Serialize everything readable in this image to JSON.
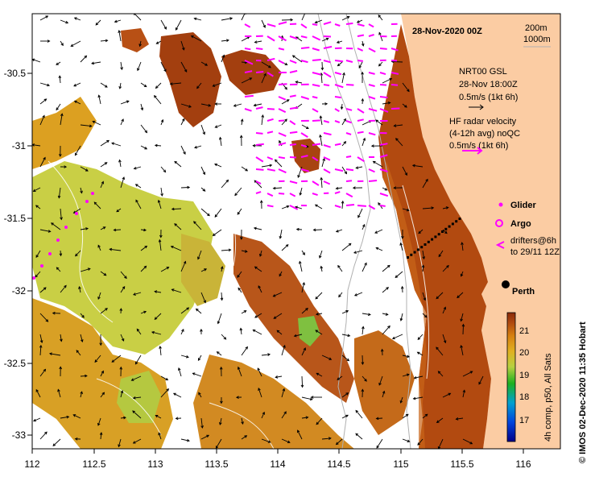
{
  "map": {
    "title": "28-Nov-2020 00Z",
    "depth_contours": [
      "200m",
      "1000m"
    ],
    "x_ticks": [
      "112",
      "112.5",
      "113",
      "113.5",
      "114",
      "114.5",
      "115",
      "115.5",
      "116"
    ],
    "y_ticks": [
      "-30.5",
      "-31",
      "-31.5",
      "-32",
      "-32.5",
      "-33"
    ],
    "lon_range": [
      112,
      116.3
    ],
    "lat_range": [
      -33.15,
      -30.05
    ],
    "city_label": "Perth",
    "credit": "© IMOS 02-Dec-2020 11:35 Hobart"
  },
  "legend": {
    "nrt": {
      "l1": "NRT00 GSL",
      "l2": "28-Nov 18:00Z",
      "l3": "0.5m/s (1kt 6h)"
    },
    "hf": {
      "l1": "HF radar velocity",
      "l2": "(4-12h avg) noQC",
      "l3": "0.5m/s (1kt 6h)"
    },
    "glider": "Glider",
    "argo": "Argo",
    "drifters": {
      "l1": "drifters@6h",
      "l2": "to 29/11 12Z"
    }
  },
  "colorbar": {
    "ticks": [
      "21",
      "20",
      "19",
      "18",
      "17"
    ],
    "label": "4h comp, p50, All Sats"
  },
  "colors": {
    "land": "#fbcca3",
    "sst_warm": "#b24a10",
    "sst_mid": "#dca021",
    "sst_cool": "#c9cf45",
    "hf_vectors": "#ff00ff",
    "contour": "#b0b0b0"
  }
}
